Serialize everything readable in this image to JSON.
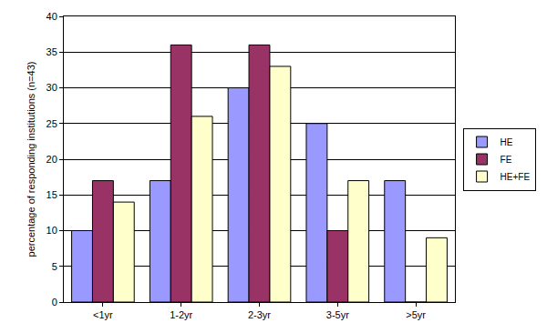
{
  "chart_data": {
    "type": "bar",
    "y_label": "percentage of responding institutions (n=43)",
    "categories": [
      "<1yr",
      "1-2yr",
      "2-3yr",
      "3-5yr",
      ">5yr"
    ],
    "series": [
      {
        "name": "HE",
        "color": "#9999ff",
        "values": [
          10,
          17,
          30,
          25,
          17
        ]
      },
      {
        "name": "FE",
        "color": "#993366",
        "values": [
          17,
          36,
          36,
          10,
          0
        ]
      },
      {
        "name": "HE+FE",
        "color": "#ffffcc",
        "values": [
          14,
          26,
          33,
          17,
          9
        ]
      }
    ],
    "ylim": [
      0,
      40
    ],
    "yticks": [
      0,
      5,
      10,
      15,
      20,
      25,
      30,
      35,
      40
    ],
    "grid": true,
    "legend": "right"
  }
}
